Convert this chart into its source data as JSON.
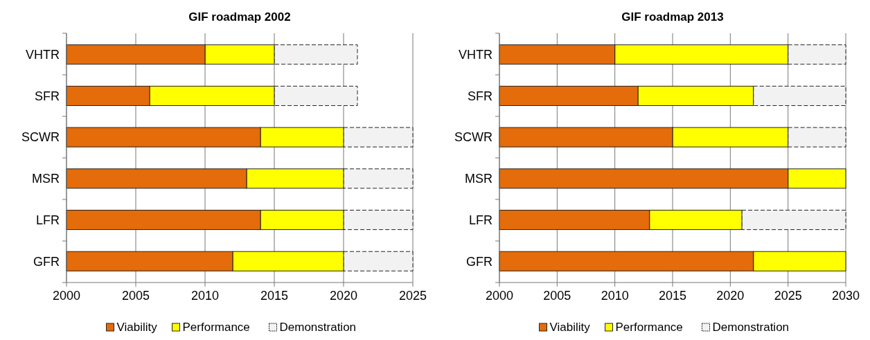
{
  "chart_data": [
    {
      "type": "bar",
      "title": "GIF roadmap 2002",
      "orientation": "horizontal",
      "categories": [
        "VHTR",
        "SFR",
        "SCWR",
        "MSR",
        "LFR",
        "GFR"
      ],
      "series": [
        {
          "name": "Viability",
          "color": "#e46c0a",
          "base": [
            2000,
            2000,
            2000,
            2000,
            2000,
            2000
          ],
          "values": [
            10,
            6,
            14,
            13,
            14,
            12
          ]
        },
        {
          "name": "Performance",
          "color": "#ffff00",
          "base": [
            2010,
            2006,
            2014,
            2013,
            2014,
            2012
          ],
          "values": [
            5,
            9,
            6,
            7,
            6,
            8
          ]
        },
        {
          "name": "Demonstration",
          "color": "#f2f2f2",
          "line_style": "dashed",
          "base": [
            2015,
            2015,
            2020,
            2020,
            2020,
            2020
          ],
          "values": [
            6,
            6,
            5,
            5,
            5,
            5
          ]
        }
      ],
      "xlim": [
        2000,
        2025
      ],
      "xticks": [
        2000,
        2005,
        2010,
        2015,
        2020,
        2025
      ],
      "grid": "x",
      "legend": "bottom"
    },
    {
      "type": "bar",
      "title": "GIF roadmap 2013",
      "orientation": "horizontal",
      "categories": [
        "VHTR",
        "SFR",
        "SCWR",
        "MSR",
        "LFR",
        "GFR"
      ],
      "series": [
        {
          "name": "Viability",
          "color": "#e46c0a",
          "base": [
            2000,
            2000,
            2000,
            2000,
            2000,
            2000
          ],
          "values": [
            10,
            12,
            15,
            25,
            13,
            22
          ]
        },
        {
          "name": "Performance",
          "color": "#ffff00",
          "base": [
            2010,
            2012,
            2015,
            2025,
            2013,
            2022
          ],
          "values": [
            15,
            10,
            10,
            5,
            8,
            8
          ]
        },
        {
          "name": "Demonstration",
          "color": "#f2f2f2",
          "line_style": "dashed",
          "base": [
            2025,
            2022,
            2025,
            null,
            2021,
            null
          ],
          "values": [
            5,
            8,
            5,
            null,
            9,
            null
          ]
        }
      ],
      "xlim": [
        2000,
        2030
      ],
      "xticks": [
        2000,
        2005,
        2010,
        2015,
        2020,
        2025,
        2030
      ],
      "grid": "x",
      "legend": "bottom"
    }
  ]
}
